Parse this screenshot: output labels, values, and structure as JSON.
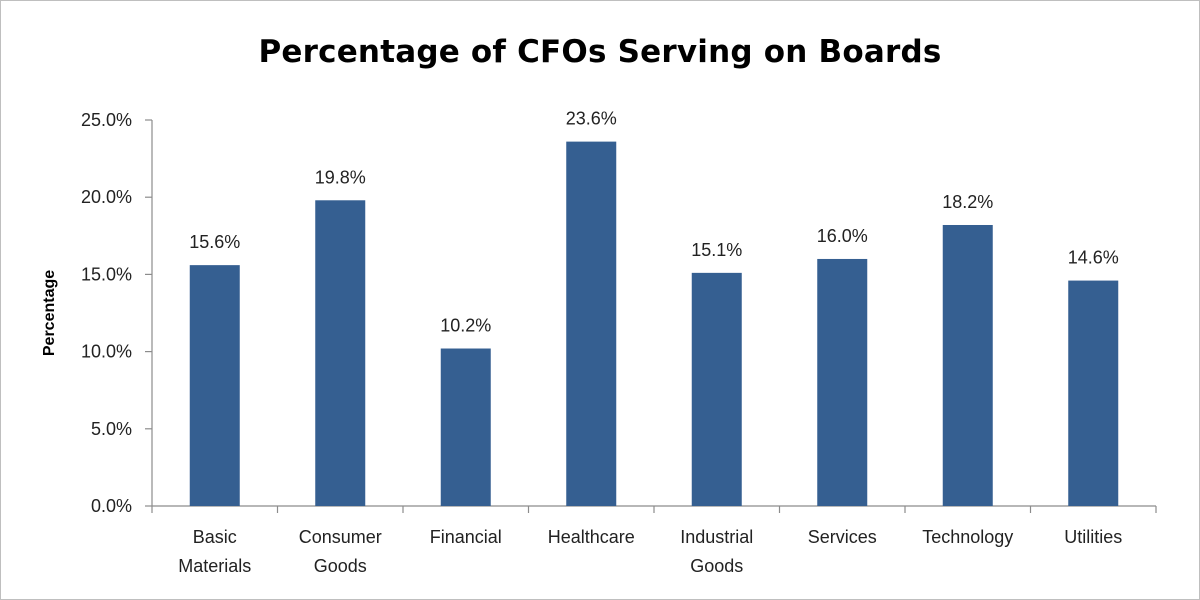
{
  "chart_data": {
    "type": "bar",
    "title": "Percentage of CFOs Serving on Boards",
    "xlabel": "",
    "ylabel": "Percentage",
    "categories": [
      [
        "Basic",
        "Materials"
      ],
      [
        "Consumer",
        "Goods"
      ],
      [
        "Financial"
      ],
      [
        "Healthcare"
      ],
      [
        "Industrial",
        "Goods"
      ],
      [
        "Services"
      ],
      [
        "Technology"
      ],
      [
        "Utilities"
      ]
    ],
    "values": [
      15.6,
      19.8,
      10.2,
      23.6,
      15.1,
      16.0,
      18.2,
      14.6
    ],
    "data_labels": [
      "15.6%",
      "19.8%",
      "10.2%",
      "23.6%",
      "15.1%",
      "16.0%",
      "18.2%",
      "14.6%"
    ],
    "ylim": [
      0,
      25
    ],
    "yticks": [
      0,
      5,
      10,
      15,
      20,
      25
    ],
    "ytick_labels": [
      "0.0%",
      "5.0%",
      "10.0%",
      "15.0%",
      "20.0%",
      "25.0%"
    ],
    "grid": false,
    "legend": "none",
    "bar_color": "#355f91",
    "axis_color": "#8c8c8c"
  }
}
